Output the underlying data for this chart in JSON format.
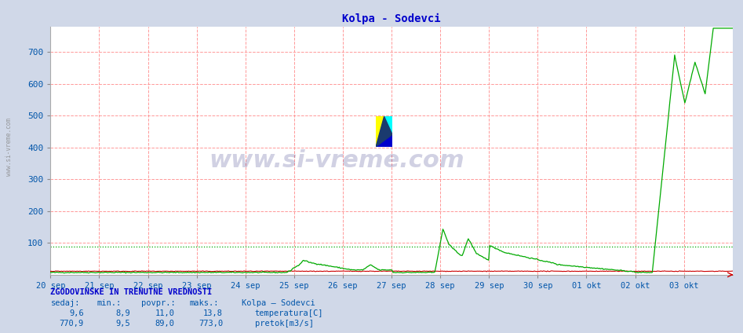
{
  "title": "Kolpa - Sodevci",
  "title_color": "#0000cc",
  "bg_color": "#d0d8e8",
  "plot_bg_color": "#ffffff",
  "grid_color_h": "#ff9999",
  "grid_color_v": "#ff9999",
  "ylabel_color": "#0055aa",
  "xlabel_color": "#0055aa",
  "n_days": 14,
  "ylim": [
    0,
    780
  ],
  "yticks": [
    100,
    200,
    300,
    400,
    500,
    600,
    700
  ],
  "x_labels": [
    "20 sep",
    "21 sep",
    "22 sep",
    "23 sep",
    "24 sep",
    "25 sep",
    "26 sep",
    "27 sep",
    "28 sep",
    "29 sep",
    "30 sep",
    "01 okt",
    "02 okt",
    "03 okt"
  ],
  "temp_color": "#cc0000",
  "flow_color": "#00aa00",
  "avg_flow_value": 89.0,
  "watermark": "www.si-vreme.com",
  "watermark_color": "#000066",
  "watermark_alpha": 0.18,
  "info_title": "ZGODOVINSKE IN TRENUTNE VREDNOSTI",
  "info_header": [
    "sedaj:",
    "min.:",
    "povpr.:",
    "maks.:",
    "Kolpa – Sodevci"
  ],
  "temp_row": [
    "9,6",
    "8,9",
    "11,0",
    "13,8",
    "temperatura[C]"
  ],
  "flow_row": [
    "770,9",
    "9,5",
    "89,0",
    "773,0",
    "pretok[m3/s]"
  ],
  "sidebar_text": "www.si-vreme.com",
  "sidebar_color": "#888888"
}
